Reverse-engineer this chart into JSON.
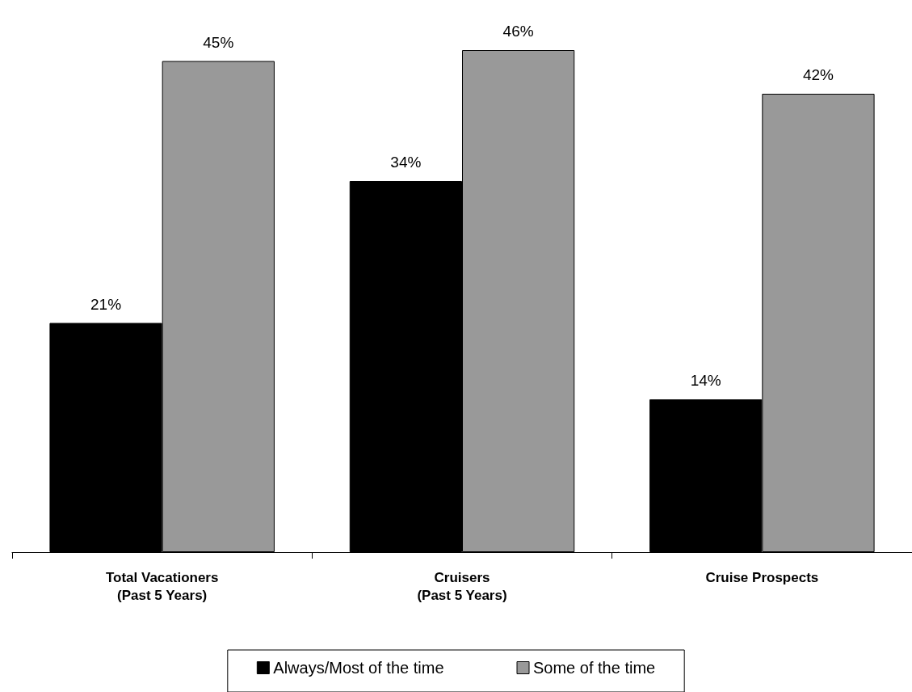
{
  "chart_data": {
    "type": "bar",
    "categories": [
      "Total Vacationers\n(Past 5 Years)",
      "Cruisers\n(Past 5 Years)",
      "Cruise Prospects"
    ],
    "series": [
      {
        "name": "Always/Most of the time",
        "color": "#000000",
        "values": [
          21,
          34,
          14
        ],
        "value_labels": [
          "21%",
          "34%",
          "14%"
        ]
      },
      {
        "name": "Some of the time",
        "color": "#999999",
        "values": [
          45,
          46,
          42
        ],
        "value_labels": [
          "45%",
          "46%",
          "42%"
        ]
      }
    ],
    "legend": "bottom"
  }
}
